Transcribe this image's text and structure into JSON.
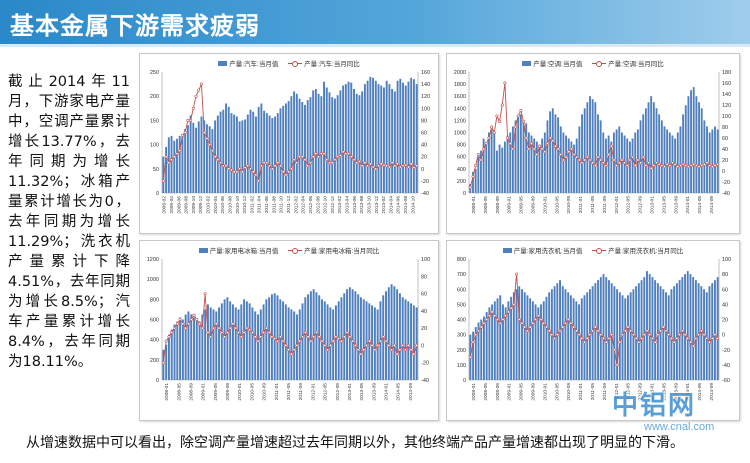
{
  "page": {
    "title": "基本金属下游需求疲弱",
    "left_text": "截止2014年11月，下游家电产量中，空调产量累计增长13.77%，去年同期为增长11.32%；冰箱产量累计增长为0，去年同期为增长11.29%；洗衣机产量累计下降4.51%，去年同期为增长8.5%；汽车产量累计增长8.4%，去年同期为18.11%。",
    "bottom_text": "从增速数据中可以看出，除空调产量增速超过去年同期以外，其他终端产品产量增速都出现了明显的下滑。",
    "watermark": "中铝网",
    "watermark_url": "www.cnal.com"
  },
  "colors": {
    "bar": "#4f7fbf",
    "line": "#c0504d",
    "title_bg": "#2a88c8"
  },
  "chart_data": [
    {
      "type": "bar+line",
      "bar_series": {
        "name": "产量:汽车:当月值",
        "values": [
          75,
          95,
          115,
          118,
          108,
          112,
          118,
          122,
          132,
          140,
          160,
          145,
          135,
          148,
          158,
          150,
          142,
          138,
          132,
          150,
          160,
          168,
          172,
          185,
          178,
          165,
          162,
          158,
          148,
          150,
          152,
          162,
          172,
          168,
          158,
          178,
          185,
          170,
          165,
          160,
          155,
          158,
          165,
          175,
          180,
          185,
          190,
          200,
          210,
          205,
          195,
          188,
          182,
          192,
          198,
          212,
          215,
          205,
          200,
          230,
          218,
          208,
          198,
          195,
          202,
          212,
          222,
          225,
          230,
          228,
          215,
          205,
          202,
          210,
          225,
          232,
          240,
          238,
          232,
          225,
          222,
          218,
          232,
          225,
          215,
          210,
          232,
          236,
          228,
          222,
          230,
          238,
          235,
          225
        ]
      },
      "line_series": {
        "name": "产量:汽车:当月同比",
        "values": [
          -20,
          20,
          10,
          15,
          20,
          25,
          30,
          55,
          60,
          80,
          80,
          100,
          120,
          130,
          140,
          60,
          50,
          40,
          30,
          20,
          15,
          10,
          5,
          5,
          0,
          -2,
          -5,
          -5,
          0,
          -5,
          2,
          5,
          0,
          -5,
          -10,
          -20,
          5,
          10,
          10,
          5,
          0,
          5,
          10,
          5,
          -5,
          -10,
          -5,
          0,
          15,
          10,
          20,
          20,
          15,
          5,
          10,
          20,
          25,
          20,
          25,
          25,
          15,
          10,
          10,
          15,
          20,
          22,
          28,
          25,
          25,
          20,
          15,
          10,
          12,
          5,
          10,
          5,
          8,
          3,
          0,
          5,
          8,
          6,
          5,
          3,
          10,
          5,
          8,
          3,
          5,
          6,
          3,
          8,
          2,
          5
        ]
      },
      "x_labels": [
        "2009-02",
        "2009-04",
        "2009-06",
        "2009-08",
        "2009-10",
        "2009-12",
        "2010-02",
        "2010-04",
        "2010-06",
        "2010-08",
        "2010-10",
        "2010-12",
        "2011-02",
        "2011-04",
        "2011-06",
        "2011-08",
        "2011-10",
        "2011-12",
        "2012-02",
        "2012-04",
        "2012-06",
        "2012-08",
        "2012-10",
        "2012-12",
        "2013-02",
        "2013-04",
        "2013-06",
        "2013-08",
        "2013-10",
        "2013-12",
        "2014-02",
        "2014-04",
        "2014-06",
        "2014-08",
        "2014-10"
      ],
      "ylim_left": [
        0,
        250
      ],
      "ylim_right": [
        -40,
        160
      ],
      "left_ticks": [
        0,
        50,
        100,
        150,
        200,
        250
      ],
      "right_ticks": [
        -40,
        -20,
        0,
        20,
        40,
        60,
        80,
        100,
        120,
        140,
        160
      ]
    },
    {
      "type": "bar+line",
      "bar_series": {
        "name": "产量:空调:当月值",
        "values": [
          150,
          350,
          400,
          600,
          700,
          900,
          800,
          1000,
          1050,
          1000,
          700,
          800,
          750,
          850,
          950,
          1000,
          1100,
          1200,
          1250,
          1300,
          1200,
          1150,
          1000,
          950,
          900,
          850,
          800,
          900,
          1000,
          1200,
          1350,
          1400,
          1300,
          1250,
          1100,
          1000,
          950,
          900,
          850,
          800,
          900,
          1100,
          1300,
          1400,
          1500,
          1600,
          1550,
          1500,
          1300,
          1200,
          1000,
          900,
          950,
          850,
          1000,
          1050,
          1100,
          1000,
          950,
          900,
          850,
          900,
          1000,
          1050,
          1200,
          1300,
          1400,
          1500,
          1600,
          1500,
          1400,
          1300,
          1200,
          1100,
          1050,
          1000,
          950,
          900,
          1000,
          1100,
          1300,
          1450,
          1600,
          1700,
          1750,
          1600,
          1500,
          1400,
          1200,
          1100,
          1000,
          1050,
          1100,
          1050
        ]
      },
      "line_series": {
        "name": "产量:空调:当月同比",
        "values": [
          -30,
          -10,
          10,
          30,
          20,
          40,
          50,
          60,
          80,
          70,
          100,
          90,
          120,
          160,
          60,
          50,
          40,
          80,
          100,
          110,
          90,
          60,
          40,
          50,
          40,
          30,
          45,
          40,
          35,
          50,
          60,
          55,
          45,
          40,
          30,
          20,
          25,
          35,
          40,
          30,
          25,
          20,
          15,
          20,
          25,
          20,
          15,
          10,
          25,
          20,
          15,
          10,
          30,
          45,
          20,
          10,
          15,
          20,
          15,
          10,
          20,
          25,
          10,
          20,
          15,
          25,
          10,
          15,
          5,
          10,
          15,
          12,
          10,
          8,
          12,
          10,
          15,
          12,
          8,
          10,
          12,
          10,
          8,
          10,
          12,
          10,
          8,
          10,
          12,
          15,
          10,
          8,
          10,
          12
        ]
      },
      "x_labels": [
        "2008-01",
        "2008-05",
        "2008-09",
        "2009-01",
        "2009-05",
        "2009-09",
        "2010-01",
        "2010-05",
        "2010-09",
        "2011-01",
        "2011-05",
        "2011-09",
        "2012-01",
        "2012-05",
        "2012-09",
        "2013-01",
        "2013-05",
        "2013-09",
        "2014-01",
        "2014-05",
        "2014-09"
      ],
      "ylim_left": [
        0,
        2000
      ],
      "ylim_right": [
        -40,
        180
      ],
      "left_ticks": [
        0,
        200,
        400,
        600,
        800,
        1000,
        1200,
        1400,
        1600,
        1800,
        2000
      ],
      "right_ticks": [
        -40,
        -20,
        0,
        20,
        40,
        60,
        80,
        100,
        120,
        140,
        160,
        180
      ]
    },
    {
      "type": "bar+line",
      "bar_series": {
        "name": "产量:家用电冰箱:当月值",
        "values": [
          300,
          350,
          450,
          500,
          550,
          580,
          620,
          600,
          650,
          680,
          650,
          620,
          600,
          580,
          650,
          700,
          750,
          720,
          700,
          680,
          720,
          760,
          800,
          820,
          780,
          750,
          720,
          700,
          750,
          800,
          780,
          760,
          720,
          680,
          650,
          700,
          750,
          800,
          820,
          850,
          860,
          840,
          800,
          780,
          750,
          720,
          700,
          680,
          650,
          700,
          760,
          820,
          850,
          880,
          900,
          870,
          840,
          800,
          780,
          750,
          720,
          700,
          740,
          780,
          820,
          860,
          900,
          920,
          900,
          880,
          850,
          820,
          800,
          780,
          760,
          740,
          720,
          700,
          780,
          840,
          880,
          920,
          950,
          930,
          900,
          860,
          820,
          800,
          780,
          760,
          740,
          720
        ]
      },
      "line_series": {
        "name": "产量:家用电冰箱:当月同比",
        "values": [
          -20,
          5,
          10,
          15,
          20,
          25,
          30,
          25,
          20,
          25,
          30,
          35,
          30,
          25,
          20,
          60,
          15,
          10,
          20,
          25,
          20,
          15,
          10,
          15,
          20,
          25,
          20,
          15,
          10,
          15,
          20,
          18,
          15,
          10,
          5,
          10,
          15,
          20,
          15,
          10,
          8,
          5,
          10,
          5,
          0,
          -5,
          -10,
          -5,
          0,
          5,
          10,
          15,
          10,
          5,
          10,
          15,
          10,
          5,
          0,
          -5,
          0,
          5,
          10,
          8,
          5,
          10,
          15,
          10,
          5,
          0,
          -5,
          -10,
          -5,
          0,
          5,
          0,
          -5,
          0,
          5,
          10,
          5,
          0,
          -5,
          0,
          -10,
          -5,
          0,
          -5,
          0,
          -5,
          -10,
          0
        ]
      },
      "x_labels": [
        "2008-01",
        "2008-05",
        "2008-09",
        "2009-01",
        "2009-05",
        "2009-09",
        "2010-01",
        "2010-05",
        "2010-09",
        "2011-01",
        "2011-05",
        "2011-09",
        "2012-01",
        "2012-05",
        "2012-09",
        "2013-01",
        "2013-05",
        "2013-09",
        "2014-01",
        "2014-05",
        "2014-09"
      ],
      "ylim_left": [
        0,
        1200
      ],
      "ylim_right": [
        -40,
        100
      ],
      "left_ticks": [
        0,
        200,
        400,
        600,
        800,
        1000,
        1200
      ],
      "right_ticks": [
        -40,
        -20,
        0,
        20,
        40,
        60,
        80,
        100
      ]
    },
    {
      "type": "bar+line",
      "bar_series": {
        "name": "产量:家用洗衣机:当月值",
        "values": [
          300,
          320,
          350,
          380,
          400,
          420,
          450,
          480,
          500,
          520,
          540,
          560,
          500,
          480,
          520,
          550,
          580,
          600,
          620,
          600,
          580,
          560,
          540,
          520,
          500,
          480,
          500,
          520,
          550,
          580,
          600,
          620,
          640,
          660,
          620,
          600,
          580,
          560,
          540,
          520,
          500,
          540,
          560,
          580,
          600,
          620,
          640,
          660,
          680,
          700,
          680,
          660,
          640,
          620,
          600,
          580,
          560,
          540,
          560,
          580,
          600,
          620,
          640,
          660,
          680,
          720,
          700,
          680,
          660,
          640,
          620,
          600,
          580,
          560,
          600,
          620,
          640,
          660,
          680,
          700,
          720,
          700,
          680,
          660,
          640,
          620,
          600,
          580,
          620,
          640,
          660,
          680
        ]
      },
      "line_series": {
        "name": "产量:家用洗衣机:当月同比",
        "values": [
          -30,
          -10,
          0,
          5,
          10,
          15,
          20,
          25,
          30,
          25,
          20,
          15,
          20,
          25,
          30,
          35,
          40,
          80,
          20,
          15,
          10,
          5,
          10,
          15,
          20,
          25,
          20,
          15,
          10,
          5,
          0,
          -5,
          0,
          5,
          10,
          15,
          20,
          15,
          10,
          5,
          0,
          -5,
          -10,
          -5,
          0,
          5,
          10,
          5,
          0,
          -5,
          -10,
          -5,
          0,
          -20,
          -40,
          -10,
          0,
          5,
          10,
          5,
          0,
          -5,
          -10,
          -5,
          0,
          5,
          0,
          -5,
          -10,
          0,
          5,
          10,
          5,
          0,
          -5,
          -10,
          -5,
          0,
          5,
          0,
          -5,
          -10,
          -15,
          -5,
          0,
          5,
          0,
          -5,
          -10,
          -5,
          0,
          -5
        ]
      },
      "x_labels": [
        "2008-01",
        "2008-05",
        "2008-09",
        "2009-01",
        "2009-05",
        "2009-09",
        "2010-01",
        "2010-05",
        "2010-09",
        "2011-01",
        "2011-05",
        "2011-09",
        "2012-01",
        "2012-05",
        "2012-09",
        "2013-01",
        "2013-05",
        "2013-09",
        "2014-01",
        "2014-05",
        "2014-09"
      ],
      "ylim_left": [
        0,
        800
      ],
      "ylim_right": [
        -60,
        100
      ],
      "left_ticks": [
        0,
        100,
        200,
        300,
        400,
        500,
        600,
        700,
        800
      ],
      "right_ticks": [
        -60,
        -40,
        -20,
        0,
        20,
        40,
        60,
        80,
        100
      ]
    }
  ]
}
